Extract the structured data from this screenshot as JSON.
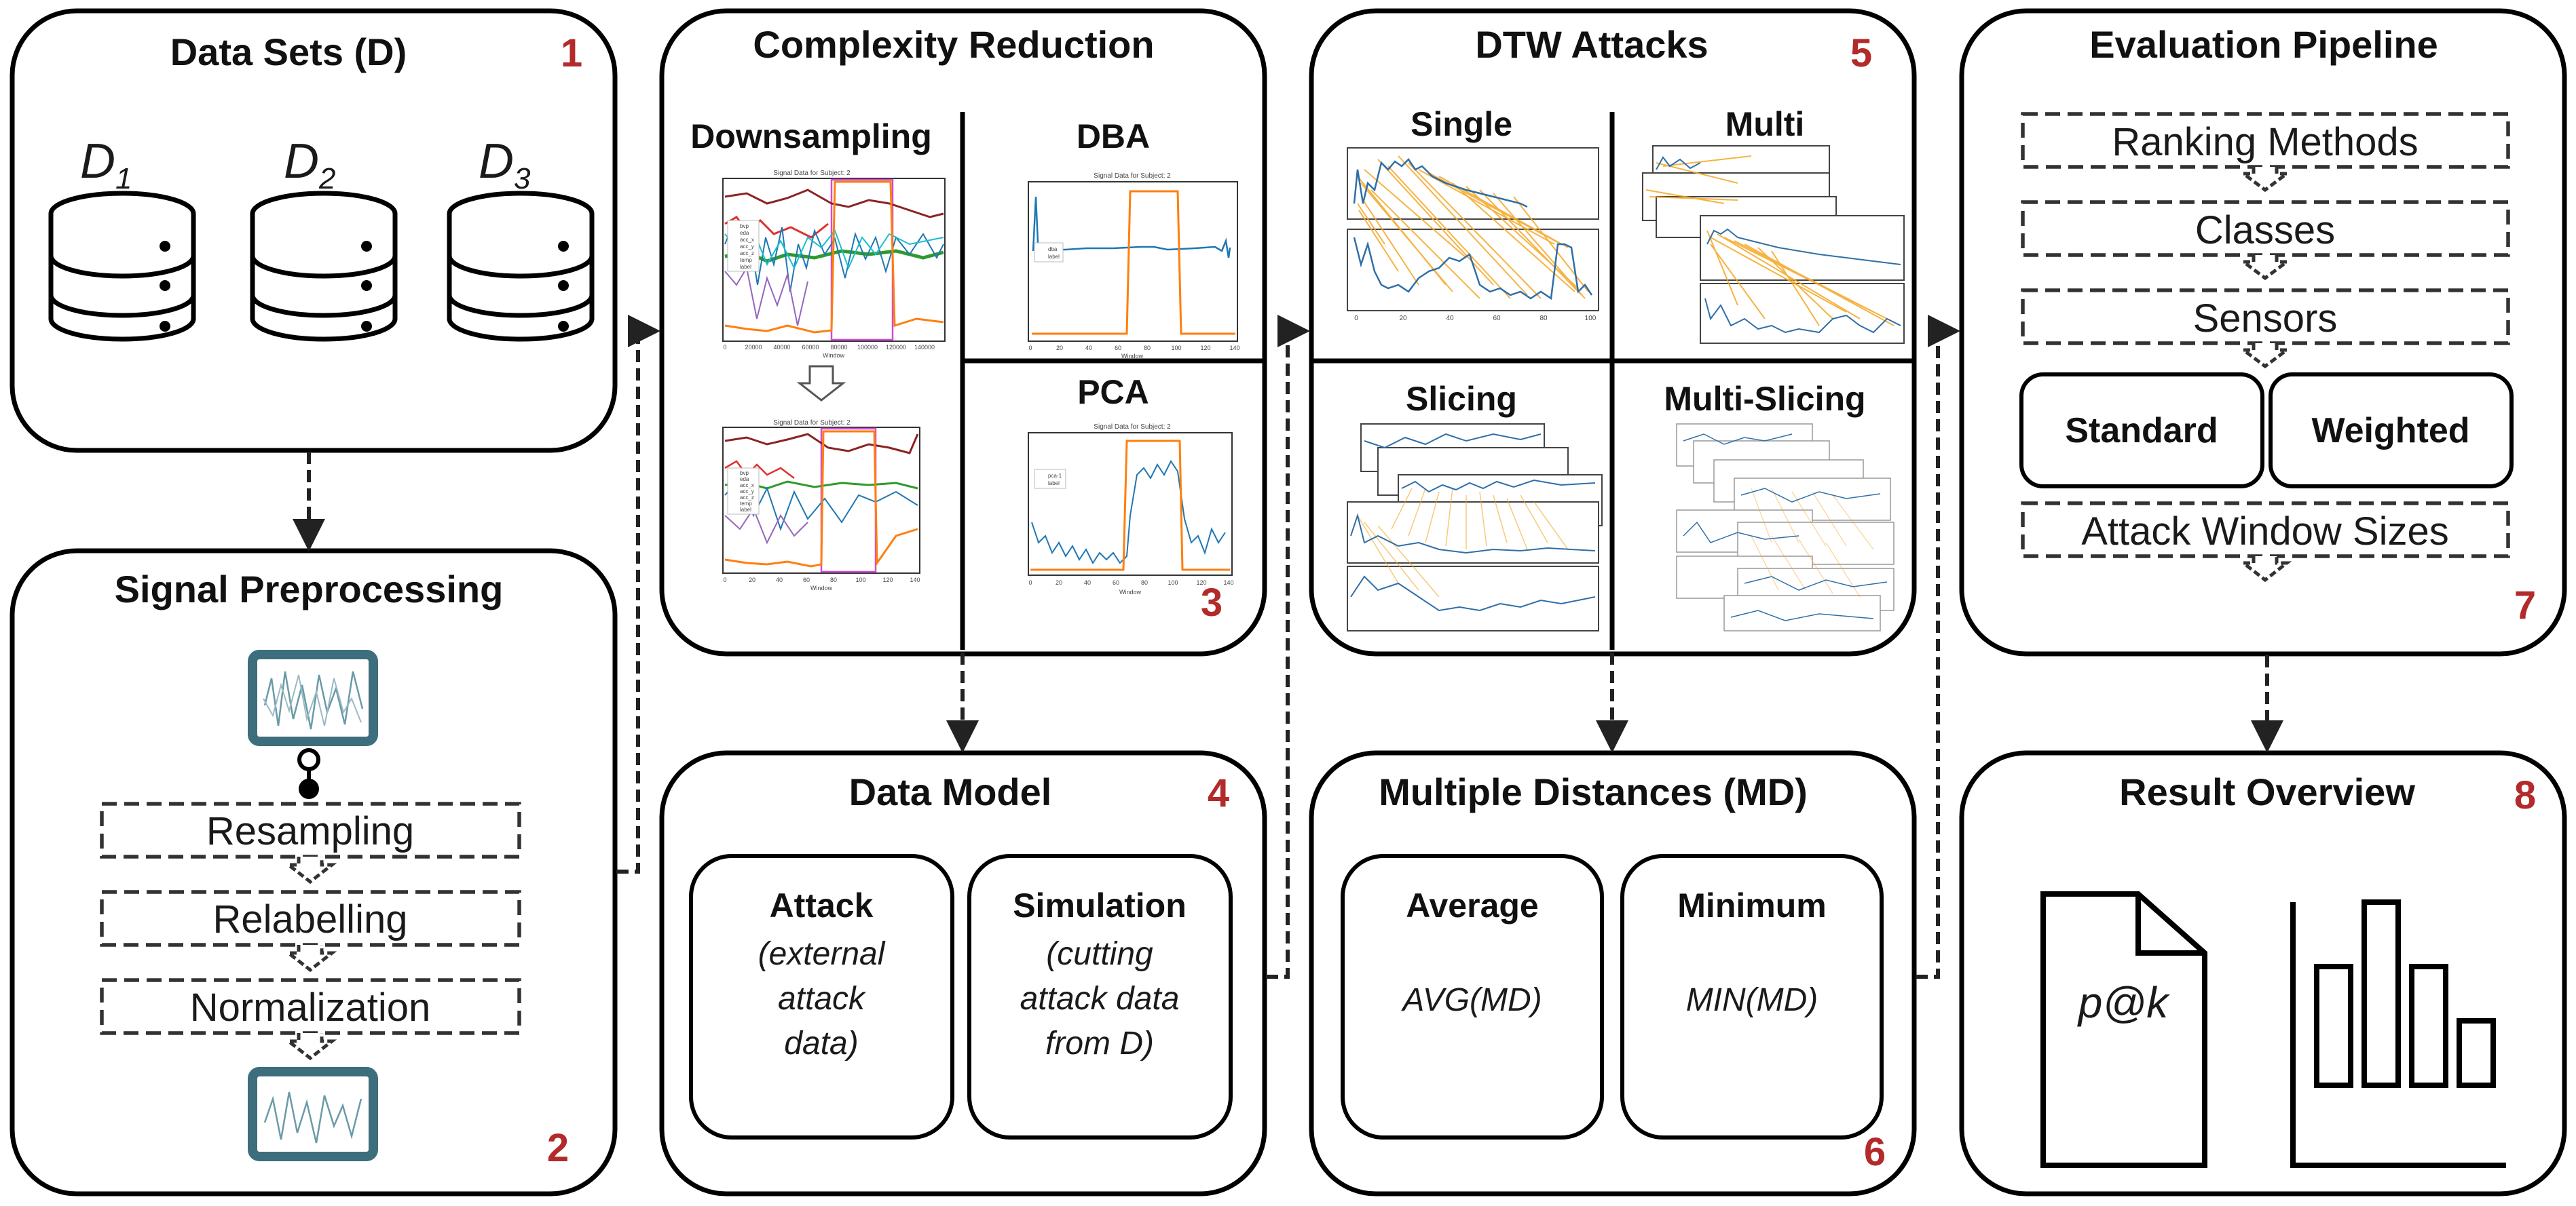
{
  "colors": {
    "number": "#b22a2a",
    "monitor": "#3d6e7d",
    "orange": "#f5a623",
    "blue": "#2f6fa8"
  },
  "data_sets": {
    "title": "Data Sets (D)",
    "number": "1",
    "items": [
      "D1",
      "D2",
      "D3"
    ],
    "item_letter": "D",
    "subs": [
      "1",
      "2",
      "3"
    ]
  },
  "preprocessing": {
    "title": "Signal Preprocessing",
    "number": "2",
    "steps": [
      "Resampling",
      "Relabelling",
      "Normalization"
    ]
  },
  "complexity": {
    "title": "Complexity Reduction",
    "number": "3",
    "downsampling": "Downsampling",
    "dba": "DBA",
    "pca": "PCA",
    "plot_title": "Signal Data for Subject: 2",
    "plot_xlabel": "Window",
    "ds_legend": [
      "bvp",
      "eda",
      "acc_x",
      "acc_y",
      "acc_z",
      "temp",
      "label"
    ],
    "ds_legend_after": [
      "bvp",
      "eda",
      "acc_x",
      "acc_y",
      "acc_z",
      "temp",
      "label"
    ],
    "dba_legend": [
      "dba",
      "label"
    ],
    "pca_legend": [
      "pca-1",
      "label"
    ],
    "ds_xticks": [
      "0",
      "20000",
      "40000",
      "60000",
      "80000",
      "100000",
      "120000",
      "140000"
    ],
    "win_xticks": [
      "0",
      "20",
      "40",
      "60",
      "80",
      "100",
      "120",
      "140"
    ]
  },
  "data_model": {
    "title": "Data Model",
    "number": "4",
    "attack": {
      "title": "Attack",
      "desc": [
        "(external",
        "attack",
        "data)"
      ]
    },
    "simulation": {
      "title": "Simulation",
      "desc": [
        "(cutting",
        "attack data",
        "from D)"
      ]
    }
  },
  "dtw": {
    "title": "DTW Attacks",
    "number": "5",
    "quadrants": [
      "Single",
      "Multi",
      "Slicing",
      "Multi-Slicing"
    ]
  },
  "distances": {
    "title": "Multiple Distances (MD)",
    "number": "6",
    "average": {
      "title": "Average",
      "formula": "AVG(MD)"
    },
    "minimum": {
      "title": "Minimum",
      "formula": "MIN(MD)"
    }
  },
  "evaluation": {
    "title": "Evaluation Pipeline",
    "number": "7",
    "steps": [
      "Ranking Methods",
      "Classes",
      "Sensors"
    ],
    "options": [
      "Standard",
      "Weighted"
    ],
    "last_step": "Attack Window Sizes"
  },
  "results": {
    "title": "Result Overview",
    "number": "8",
    "doc_label": "p@k"
  }
}
